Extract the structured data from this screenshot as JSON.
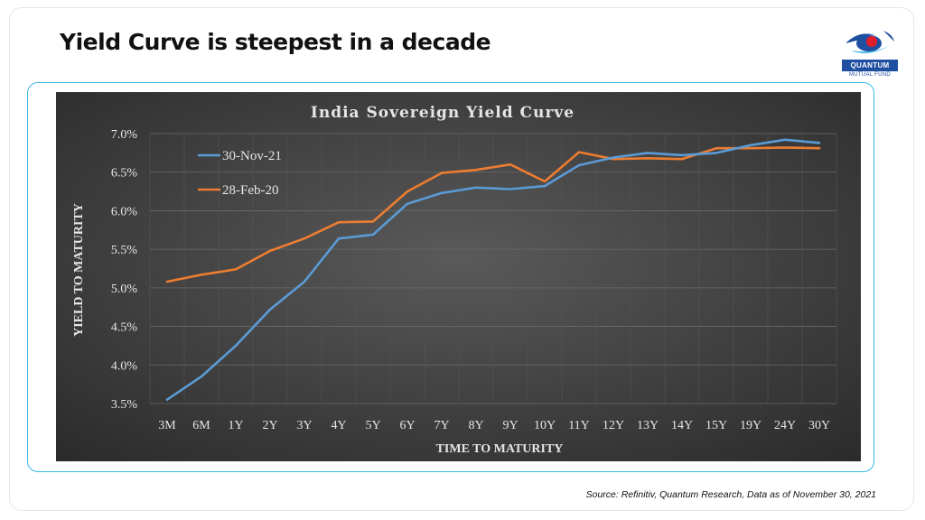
{
  "slide": {
    "title": "Yield Curve is steepest in a decade",
    "source": "Source: Refinitiv, Quantum Research, Data as of November 30, 2021",
    "logo": {
      "name": "QUANTUM",
      "sub": "MUTUAL FUND"
    },
    "colors": {
      "frame": "#39b6e6",
      "brand": "#1e4fa0"
    }
  },
  "chart_data": {
    "type": "line",
    "title": "India Sovereign Yield Curve",
    "xlabel": "TIME TO MATURITY",
    "ylabel": "YIELD TO MATURITY",
    "categories": [
      "3M",
      "6M",
      "1Y",
      "2Y",
      "3Y",
      "4Y",
      "5Y",
      "6Y",
      "7Y",
      "8Y",
      "9Y",
      "10Y",
      "11Y",
      "12Y",
      "13Y",
      "14Y",
      "15Y",
      "19Y",
      "24Y",
      "30Y"
    ],
    "ylim": [
      3.5,
      7.0
    ],
    "yticks": [
      "3.5%",
      "4.0%",
      "4.5%",
      "5.0%",
      "5.5%",
      "6.0%",
      "6.5%",
      "7.0%"
    ],
    "grid": true,
    "legend": "top-left",
    "series": [
      {
        "name": "30-Nov-21",
        "color": "#5b9bd5",
        "values": [
          3.55,
          3.85,
          4.25,
          4.72,
          5.08,
          5.64,
          5.69,
          6.09,
          6.23,
          6.3,
          6.28,
          6.32,
          6.59,
          6.69,
          6.75,
          6.72,
          6.75,
          6.85,
          6.92,
          6.88
        ]
      },
      {
        "name": "28-Feb-20",
        "color": "#ed7d31",
        "values": [
          5.08,
          5.17,
          5.24,
          5.48,
          5.64,
          5.85,
          5.86,
          6.25,
          6.49,
          6.53,
          6.6,
          6.38,
          6.76,
          6.67,
          6.68,
          6.67,
          6.81,
          6.81,
          6.82,
          6.81
        ]
      }
    ]
  }
}
